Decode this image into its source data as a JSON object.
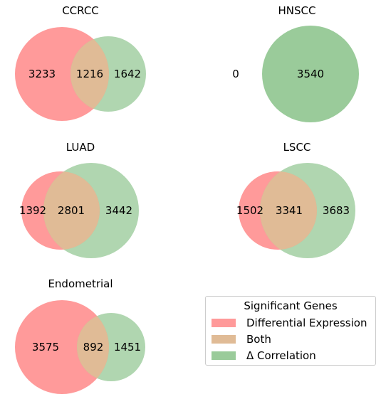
{
  "chart_data": [
    {
      "type": "venn",
      "title": "CCRCC",
      "left_only": 3233,
      "both": 1216,
      "right_only": 1642
    },
    {
      "type": "venn",
      "title": "HNSCC",
      "left_only": 0,
      "both": null,
      "right_only": 3540
    },
    {
      "type": "venn",
      "title": "LUAD",
      "left_only": 1392,
      "both": 2801,
      "right_only": 3442
    },
    {
      "type": "venn",
      "title": "LSCC",
      "left_only": 1502,
      "both": 3341,
      "right_only": 3683
    },
    {
      "type": "venn",
      "title": "Endometrial",
      "left_only": 3575,
      "both": 892,
      "right_only": 1451
    }
  ],
  "legend": {
    "title": "Significant Genes",
    "items": [
      {
        "label": "Differential Expression",
        "color": "#ff9a9a"
      },
      {
        "label": "Both",
        "color": "#e0bb96"
      },
      {
        "label": "Δ Correlation",
        "color": "#9acb9a"
      }
    ]
  },
  "colors": {
    "left": "#ff9a9a",
    "right": "#9acb9a"
  }
}
